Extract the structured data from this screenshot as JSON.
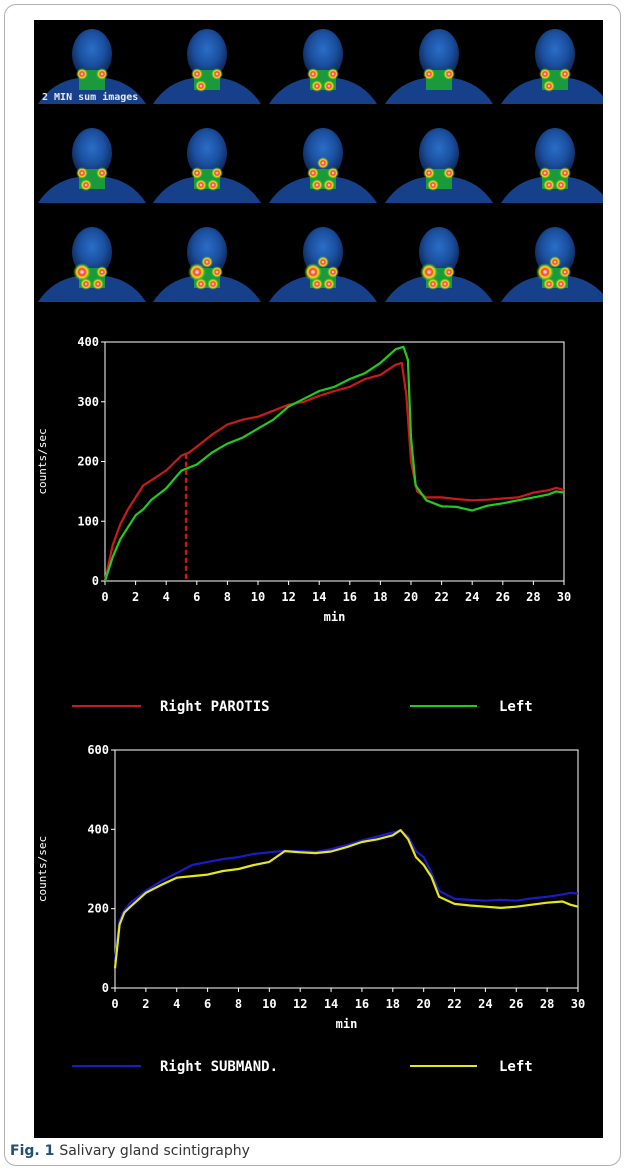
{
  "caption": {
    "fig_label": "Fig. 1",
    "text": "Salivary gland scintigraphy"
  },
  "images_label": "2 MIN sum images",
  "colors": {
    "right_parotis": "#cc1a1a",
    "left_parotis": "#1fcc1f",
    "right_submand": "#1a1acc",
    "left_submand": "#e6e61a",
    "axes": "#ffffff",
    "marker": "#cc1a1a"
  },
  "chart_data": [
    {
      "type": "line",
      "title": "",
      "xlabel": "min",
      "ylabel": "counts/sec",
      "xlim": [
        0,
        30
      ],
      "ylim": [
        0,
        400
      ],
      "xticks": [
        "0",
        "2",
        "4",
        "6",
        "8",
        "10",
        "12",
        "14",
        "16",
        "18",
        "20",
        "22",
        "24",
        "26",
        "28",
        "30"
      ],
      "yticks": [
        "0",
        "100",
        "200",
        "300",
        "400"
      ],
      "marker_x": 5.3,
      "legend": {
        "right_label": "Right   PAROTIS",
        "left_label": "Left"
      },
      "series": [
        {
          "name": "Right PAROTIS",
          "x": [
            0,
            0.5,
            1,
            1.5,
            2,
            2.5,
            3,
            4,
            5,
            5.5,
            6,
            7,
            8,
            9,
            10,
            11,
            12,
            13,
            14,
            15,
            16,
            17,
            18,
            19,
            19.4,
            19.7,
            20,
            20.4,
            21,
            22,
            23,
            24,
            25,
            26,
            27,
            28,
            29,
            29.5,
            30
          ],
          "y": [
            0,
            60,
            95,
            120,
            140,
            160,
            168,
            185,
            210,
            215,
            225,
            245,
            262,
            270,
            275,
            285,
            295,
            300,
            310,
            318,
            325,
            338,
            345,
            362,
            365,
            310,
            200,
            150,
            140,
            140,
            137,
            135,
            136,
            138,
            140,
            148,
            152,
            156,
            152
          ]
        },
        {
          "name": "Left",
          "x": [
            0,
            0.5,
            1,
            1.5,
            2,
            2.5,
            3,
            4,
            5,
            5.5,
            6,
            7,
            8,
            9,
            10,
            11,
            12,
            13,
            14,
            15,
            16,
            17,
            18,
            19,
            19.5,
            19.8,
            20,
            20.3,
            21,
            22,
            23,
            24,
            25,
            26,
            27,
            28,
            29,
            29.5,
            30
          ],
          "y": [
            0,
            40,
            70,
            90,
            110,
            120,
            135,
            155,
            185,
            190,
            195,
            215,
            230,
            240,
            255,
            270,
            292,
            305,
            318,
            325,
            338,
            348,
            365,
            388,
            392,
            370,
            240,
            160,
            135,
            125,
            124,
            118,
            126,
            130,
            135,
            140,
            145,
            150,
            148
          ]
        }
      ]
    },
    {
      "type": "line",
      "title": "",
      "xlabel": "min",
      "ylabel": "counts/sec",
      "xlim": [
        0,
        30
      ],
      "ylim": [
        0,
        600
      ],
      "xticks": [
        "0",
        "2",
        "4",
        "6",
        "8",
        "10",
        "12",
        "14",
        "16",
        "18",
        "20",
        "22",
        "24",
        "26",
        "28",
        "30"
      ],
      "yticks": [
        "0",
        "200",
        "400",
        "600"
      ],
      "legend": {
        "right_label": "Right   SUBMAND.",
        "left_label": "Left"
      },
      "series": [
        {
          "name": "Right SUBMAND.",
          "x": [
            0,
            0.3,
            0.6,
            1,
            2,
            3,
            4,
            5,
            6,
            7,
            8,
            9,
            10,
            11,
            12,
            13,
            14,
            15,
            16,
            17,
            18,
            18.5,
            19,
            19.5,
            20,
            20.5,
            21,
            22,
            23,
            24,
            25,
            26,
            27,
            28,
            29,
            29.5,
            30
          ],
          "y": [
            70,
            170,
            195,
            215,
            245,
            270,
            290,
            310,
            318,
            325,
            330,
            338,
            342,
            346,
            345,
            343,
            350,
            360,
            372,
            382,
            392,
            396,
            382,
            345,
            330,
            290,
            245,
            225,
            222,
            220,
            222,
            220,
            226,
            230,
            236,
            240,
            238
          ]
        },
        {
          "name": "Left",
          "x": [
            0,
            0.3,
            0.6,
            1,
            2,
            3,
            4,
            5,
            6,
            7,
            8,
            9,
            10,
            11,
            12,
            13,
            14,
            15,
            16,
            17,
            18,
            18.5,
            19,
            19.5,
            20,
            20.5,
            21,
            22,
            23,
            24,
            25,
            26,
            27,
            28,
            29,
            29.5,
            30
          ],
          "y": [
            50,
            160,
            190,
            205,
            240,
            260,
            278,
            282,
            286,
            295,
            300,
            310,
            318,
            345,
            342,
            340,
            344,
            355,
            368,
            375,
            385,
            398,
            375,
            330,
            310,
            280,
            230,
            212,
            208,
            205,
            202,
            205,
            210,
            215,
            218,
            210,
            205
          ]
        }
      ]
    }
  ]
}
